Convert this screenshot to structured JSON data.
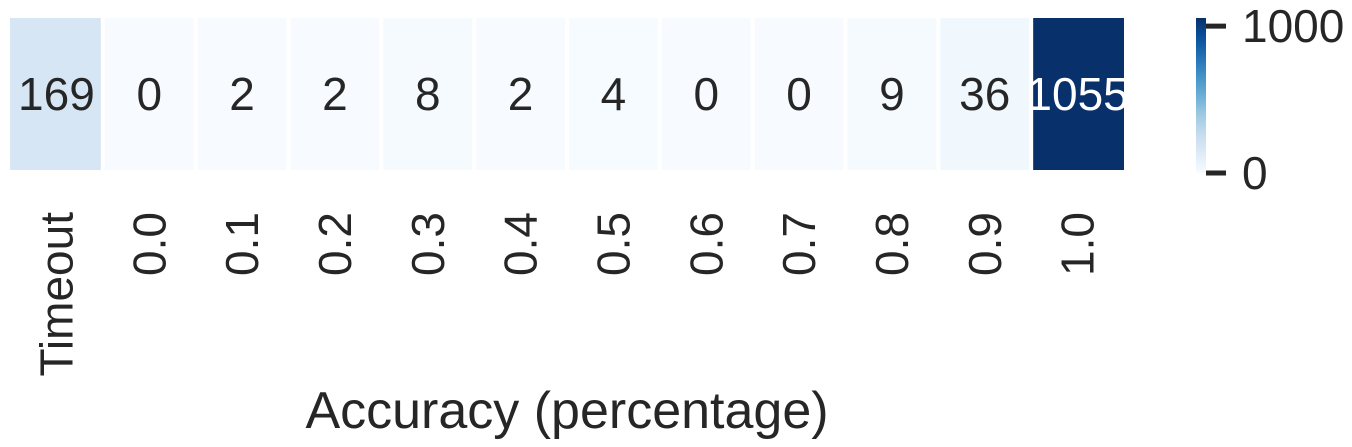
{
  "chart_data": {
    "type": "heatmap",
    "categories": [
      "Timeout",
      "0.0",
      "0.1",
      "0.2",
      "0.3",
      "0.4",
      "0.5",
      "0.6",
      "0.7",
      "0.8",
      "0.9",
      "1.0"
    ],
    "values": [
      169,
      0,
      2,
      2,
      8,
      2,
      4,
      0,
      0,
      9,
      36,
      1055
    ],
    "xlabel": "Accuracy (percentage)",
    "ylabel": "",
    "colormap": "Blues",
    "color_range": [
      0,
      1055
    ],
    "colorbar": {
      "ticks": [
        0,
        1000
      ],
      "tick_labels": [
        "0",
        "1000"
      ],
      "position": "right"
    },
    "colors": {
      "low": "#f7fbff",
      "high": "#08306b",
      "text_dark": "#262626",
      "text_light": "#ffffff"
    }
  }
}
